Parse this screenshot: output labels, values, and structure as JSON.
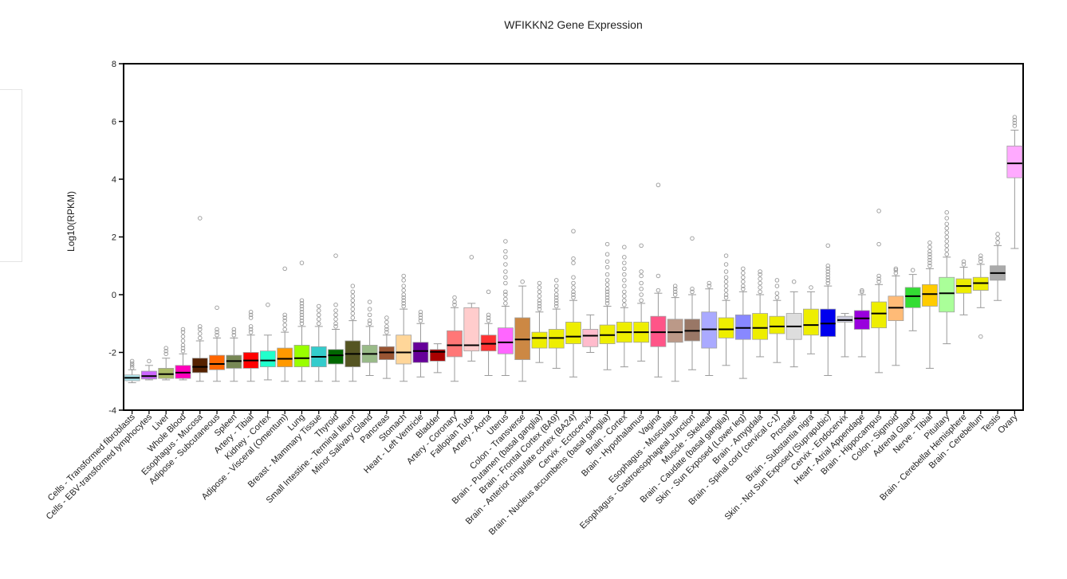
{
  "chart_data": {
    "type": "box",
    "title": "WFIKKN2 Gene Expression",
    "xlabel": "",
    "ylabel": "Log10(RPKM)",
    "ylim": [
      -4,
      8
    ],
    "yticks": [
      -4,
      -2,
      0,
      2,
      4,
      6,
      8
    ],
    "grid": false,
    "legend": "none",
    "series": [
      {
        "name": "Cells - Transformed fibroblasts",
        "color": "#b0e8f0",
        "whisker_low": -3.05,
        "q1": -2.98,
        "median": -2.88,
        "q3": -2.78,
        "whisker_high": -2.6,
        "outliers": [
          -2.45,
          -2.38,
          -2.3,
          -2.53
        ]
      },
      {
        "name": "Cells - EBV-transformed lymphocytes",
        "color": "#cc66ff",
        "whisker_low": -2.95,
        "q1": -2.92,
        "median": -2.82,
        "q3": -2.65,
        "whisker_high": -2.45,
        "outliers": [
          -2.3
        ]
      },
      {
        "name": "Liver",
        "color": "#aabb66",
        "whisker_low": -2.95,
        "q1": -2.9,
        "median": -2.75,
        "q3": -2.55,
        "whisker_high": -2.2,
        "outliers": [
          -2.05,
          -1.95,
          -1.85
        ]
      },
      {
        "name": "Whole Blood",
        "color": "#ff00bb",
        "whisker_low": -2.95,
        "q1": -2.9,
        "median": -2.7,
        "q3": -2.45,
        "whisker_high": -2.05,
        "outliers": [
          -1.95,
          -1.85,
          -1.75,
          -1.6,
          -1.45,
          -1.3,
          -1.2
        ]
      },
      {
        "name": "Esophagus - Mucosa",
        "color": "#552200",
        "whisker_low": -3.0,
        "q1": -2.7,
        "median": -2.5,
        "q3": -2.2,
        "whisker_high": -1.6,
        "outliers": [
          -1.5,
          -1.35,
          -1.2,
          -1.1,
          2.65
        ]
      },
      {
        "name": "Adipose - Subcutaneous",
        "color": "#ff6600",
        "whisker_low": -3.0,
        "q1": -2.6,
        "median": -2.4,
        "q3": -2.1,
        "whisker_high": -1.5,
        "outliers": [
          -1.4,
          -1.3,
          -1.2,
          -0.45
        ]
      },
      {
        "name": "Spleen",
        "color": "#778855",
        "whisker_low": -3.0,
        "q1": -2.55,
        "median": -2.3,
        "q3": -2.1,
        "whisker_high": -1.5,
        "outliers": [
          -1.4,
          -1.3,
          -1.2
        ]
      },
      {
        "name": "Artery - Tibial",
        "color": "#ff0000",
        "whisker_low": -3.0,
        "q1": -2.55,
        "median": -2.28,
        "q3": -2.0,
        "whisker_high": -1.4,
        "outliers": [
          -1.3,
          -1.2,
          -1.1,
          -0.8,
          -0.7,
          -0.6
        ]
      },
      {
        "name": "Kidney - Cortex",
        "color": "#22ffcc",
        "whisker_low": -2.95,
        "q1": -2.5,
        "median": -2.28,
        "q3": -1.95,
        "whisker_high": -1.4,
        "outliers": [
          -0.35
        ]
      },
      {
        "name": "Adipose - Visceral (Omentum)",
        "color": "#ff9900",
        "whisker_low": -3.0,
        "q1": -2.5,
        "median": -2.22,
        "q3": -1.85,
        "whisker_high": -1.3,
        "outliers": [
          -1.2,
          -1.05,
          -0.9,
          -0.8,
          -0.7,
          0.9
        ]
      },
      {
        "name": "Lung",
        "color": "#99ff00",
        "whisker_low": -3.0,
        "q1": -2.5,
        "median": -2.2,
        "q3": -1.75,
        "whisker_high": -1.1,
        "outliers": [
          -1.0,
          -0.9,
          -0.8,
          -0.7,
          -0.6,
          -0.5,
          -0.4,
          -0.3,
          -0.2,
          1.1
        ]
      },
      {
        "name": "Breast - Mammary Tissue",
        "color": "#33cccc",
        "whisker_low": -3.0,
        "q1": -2.5,
        "median": -2.15,
        "q3": -1.8,
        "whisker_high": -1.1,
        "outliers": [
          -1.0,
          -0.85,
          -0.7,
          -0.55,
          -0.4
        ]
      },
      {
        "name": "Thyroid",
        "color": "#006600",
        "whisker_low": -3.0,
        "q1": -2.4,
        "median": -2.1,
        "q3": -1.9,
        "whisker_high": -1.2,
        "outliers": [
          -1.1,
          -1.0,
          -0.85,
          -0.7,
          -0.55,
          -0.35,
          1.35
        ]
      },
      {
        "name": "Small Intestine - Terminal Ileum",
        "color": "#555522",
        "whisker_low": -3.0,
        "q1": -2.5,
        "median": -2.05,
        "q3": -1.6,
        "whisker_high": -0.9,
        "outliers": [
          -0.8,
          -0.65,
          -0.5,
          -0.35,
          -0.2,
          -0.05,
          0.1,
          0.3
        ]
      },
      {
        "name": "Minor Salivary Gland",
        "color": "#99bb88",
        "whisker_low": -2.8,
        "q1": -2.35,
        "median": -2.05,
        "q3": -1.75,
        "whisker_high": -1.1,
        "outliers": [
          -1.0,
          -0.9,
          -0.7,
          -0.5,
          -0.25
        ]
      },
      {
        "name": "Pancreas",
        "color": "#995533",
        "whisker_low": -2.9,
        "q1": -2.25,
        "median": -2.0,
        "q3": -1.8,
        "whisker_high": -1.4,
        "outliers": [
          -1.3,
          -1.2,
          -1.1,
          -0.95,
          -0.8
        ]
      },
      {
        "name": "Stomach",
        "color": "#ffd699",
        "whisker_low": -3.0,
        "q1": -2.4,
        "median": -2.0,
        "q3": -1.4,
        "whisker_high": -0.5,
        "outliers": [
          -0.4,
          -0.3,
          -0.2,
          -0.1,
          0.0,
          0.15,
          0.3,
          0.5,
          0.65
        ]
      },
      {
        "name": "Heart - Left Ventricle",
        "color": "#660099",
        "whisker_low": -2.85,
        "q1": -2.35,
        "median": -1.95,
        "q3": -1.65,
        "whisker_high": -1.0,
        "outliers": [
          -0.9,
          -0.8,
          -0.7,
          -0.6
        ]
      },
      {
        "name": "Bladder",
        "color": "#aa0000",
        "whisker_low": -2.7,
        "q1": -2.3,
        "median": -1.98,
        "q3": -1.9,
        "whisker_high": -1.7,
        "outliers": []
      },
      {
        "name": "Artery - Coronary",
        "color": "#ff7777",
        "whisker_low": -3.0,
        "q1": -2.15,
        "median": -1.75,
        "q3": -1.25,
        "whisker_high": -0.45,
        "outliers": [
          -0.35,
          -0.25,
          -0.1
        ]
      },
      {
        "name": "Fallopian Tube",
        "color": "#ffcccc",
        "whisker_low": -2.3,
        "q1": -1.95,
        "median": -1.75,
        "q3": -0.45,
        "whisker_high": -0.3,
        "outliers": [
          1.3
        ]
      },
      {
        "name": "Artery - Aorta",
        "color": "#ff3333",
        "whisker_low": -2.8,
        "q1": -1.95,
        "median": -1.7,
        "q3": -1.4,
        "whisker_high": -1.0,
        "outliers": [
          -0.9,
          -0.8,
          -0.7,
          0.1
        ]
      },
      {
        "name": "Uterus",
        "color": "#ff66ff",
        "whisker_low": -2.8,
        "q1": -2.05,
        "median": -1.65,
        "q3": -1.15,
        "whisker_high": -0.4,
        "outliers": [
          -0.3,
          -0.15,
          0.0,
          0.1,
          0.4,
          0.6,
          0.8,
          1.05,
          1.3,
          1.5,
          1.85
        ]
      },
      {
        "name": "Colon - Transverse",
        "color": "#cc8844",
        "whisker_low": -3.0,
        "q1": -2.25,
        "median": -1.55,
        "q3": -0.8,
        "whisker_high": 0.3,
        "outliers": [
          0.45
        ]
      },
      {
        "name": "Brain - Putamen (basal ganglia)",
        "color": "#eeee00",
        "whisker_low": -2.35,
        "q1": -1.85,
        "median": -1.5,
        "q3": -1.3,
        "whisker_high": -0.6,
        "outliers": [
          -0.5,
          -0.4,
          -0.3,
          -0.2,
          -0.05,
          0.1,
          0.25,
          0.4
        ]
      },
      {
        "name": "Brain - Frontal Cortex (BA9)",
        "color": "#eeee00",
        "whisker_low": -2.55,
        "q1": -1.85,
        "median": -1.5,
        "q3": -1.2,
        "whisker_high": -0.5,
        "outliers": [
          -0.4,
          -0.3,
          -0.2,
          -0.1,
          0.0,
          0.15,
          0.3,
          0.5
        ]
      },
      {
        "name": "Brain - Anterior cingulate cortex (BA24)",
        "color": "#eeee00",
        "whisker_low": -2.85,
        "q1": -1.7,
        "median": -1.45,
        "q3": -0.95,
        "whisker_high": -0.2,
        "outliers": [
          -0.1,
          0.0,
          0.1,
          0.25,
          0.4,
          0.6,
          1.1,
          1.25,
          2.2
        ]
      },
      {
        "name": "Cervix - Ectocervix",
        "color": "#ffbbcc",
        "whisker_low": -2.0,
        "q1": -1.8,
        "median": -1.42,
        "q3": -1.2,
        "whisker_high": -0.7,
        "outliers": []
      },
      {
        "name": "Brain - Nucleus accumbens (basal ganglia)",
        "color": "#eeee00",
        "whisker_low": -2.6,
        "q1": -1.7,
        "median": -1.4,
        "q3": -1.05,
        "whisker_high": -0.4,
        "outliers": [
          -0.3,
          -0.2,
          -0.1,
          0.0,
          0.1,
          0.2,
          0.35,
          0.5,
          0.7,
          0.95,
          1.15,
          1.4,
          1.75
        ]
      },
      {
        "name": "Brain - Cortex",
        "color": "#eeee00",
        "whisker_low": -2.5,
        "q1": -1.65,
        "median": -1.3,
        "q3": -0.95,
        "whisker_high": -0.45,
        "outliers": [
          -0.35,
          -0.2,
          -0.05,
          0.1,
          0.3,
          0.5,
          0.7,
          0.9,
          1.1,
          1.3,
          1.65
        ]
      },
      {
        "name": "Brain - Hypothalamus",
        "color": "#eeee00",
        "whisker_low": -2.3,
        "q1": -1.65,
        "median": -1.3,
        "q3": -0.95,
        "whisker_high": -0.3,
        "outliers": [
          -0.2,
          0.0,
          0.2,
          0.4,
          0.65,
          0.8,
          1.7
        ]
      },
      {
        "name": "Vagina",
        "color": "#ff5588",
        "whisker_low": -2.85,
        "q1": -1.8,
        "median": -1.3,
        "q3": -0.75,
        "whisker_high": 0.05,
        "outliers": [
          0.15,
          0.65,
          3.8
        ]
      },
      {
        "name": "Esophagus - Muscularis",
        "color": "#bb9988",
        "whisker_low": -3.0,
        "q1": -1.65,
        "median": -1.3,
        "q3": -0.85,
        "whisker_high": -0.1,
        "outliers": [
          0.0,
          0.1,
          0.2,
          0.3
        ]
      },
      {
        "name": "Esophagus - Gastroesophageal Junction",
        "color": "#997766",
        "whisker_low": -2.6,
        "q1": -1.6,
        "median": -1.25,
        "q3": -0.85,
        "whisker_high": 0.0,
        "outliers": [
          0.1,
          0.2,
          1.95
        ]
      },
      {
        "name": "Muscle - Skeletal",
        "color": "#aaaaff",
        "whisker_low": -2.8,
        "q1": -1.85,
        "median": -1.2,
        "q3": -0.6,
        "whisker_high": 0.2,
        "outliers": [
          0.3,
          0.4
        ]
      },
      {
        "name": "Brain - Caudate (basal ganglia)",
        "color": "#eeee00",
        "whisker_low": -2.45,
        "q1": -1.5,
        "median": -1.2,
        "q3": -0.8,
        "whisker_high": -0.2,
        "outliers": [
          -0.1,
          0.0,
          0.15,
          0.3,
          0.45,
          0.6,
          0.8,
          1.05,
          1.35
        ]
      },
      {
        "name": "Skin - Sun Exposed (Lower leg)",
        "color": "#8888ff",
        "whisker_low": -2.9,
        "q1": -1.55,
        "median": -1.15,
        "q3": -0.7,
        "whisker_high": 0.1,
        "outliers": [
          0.2,
          0.3,
          0.45,
          0.6,
          0.75,
          0.9
        ]
      },
      {
        "name": "Brain - Amygdala",
        "color": "#eeee00",
        "whisker_low": -2.15,
        "q1": -1.55,
        "median": -1.15,
        "q3": -0.65,
        "whisker_high": 0.0,
        "outliers": [
          0.1,
          0.25,
          0.4,
          0.55,
          0.7,
          0.8
        ]
      },
      {
        "name": "Brain - Spinal cord (cervical c-1)",
        "color": "#eeee00",
        "whisker_low": -2.35,
        "q1": -1.35,
        "median": -1.1,
        "q3": -0.75,
        "whisker_high": -0.2,
        "outliers": [
          -0.1,
          0.05,
          0.3,
          0.5
        ]
      },
      {
        "name": "Prostate",
        "color": "#dddddd",
        "whisker_low": -2.5,
        "q1": -1.55,
        "median": -1.1,
        "q3": -0.65,
        "whisker_high": 0.1,
        "outliers": [
          0.45
        ]
      },
      {
        "name": "Brain - Substantia nigra",
        "color": "#eeee00",
        "whisker_low": -2.05,
        "q1": -1.4,
        "median": -1.05,
        "q3": -0.5,
        "whisker_high": 0.1,
        "outliers": [
          0.25
        ]
      },
      {
        "name": "Skin - Not Sun Exposed (Suprapubic)",
        "color": "#0000ee",
        "whisker_low": -2.8,
        "q1": -1.45,
        "median": -1.0,
        "q3": -0.5,
        "whisker_high": 0.3,
        "outliers": [
          0.4,
          0.5,
          0.6,
          0.7,
          0.8,
          0.9,
          1.0,
          1.7
        ]
      },
      {
        "name": "Cervix - Endocervix",
        "color": "#ccccdd",
        "whisker_low": -2.15,
        "q1": -0.95,
        "median": -0.88,
        "q3": -0.75,
        "whisker_high": -0.65,
        "outliers": []
      },
      {
        "name": "Heart - Atrial Appendage",
        "color": "#9900dd",
        "whisker_low": -2.15,
        "q1": -1.2,
        "median": -0.82,
        "q3": -0.55,
        "whisker_high": 0.0,
        "outliers": [
          0.1,
          0.15
        ]
      },
      {
        "name": "Brain - Hippocampus",
        "color": "#eeee00",
        "whisker_low": -2.7,
        "q1": -1.15,
        "median": -0.65,
        "q3": -0.25,
        "whisker_high": 0.35,
        "outliers": [
          0.45,
          0.55,
          0.65,
          1.75,
          2.9
        ]
      },
      {
        "name": "Colon - Sigmoid",
        "color": "#ffbb77",
        "whisker_low": -2.45,
        "q1": -0.9,
        "median": -0.45,
        "q3": -0.05,
        "whisker_high": 0.65,
        "outliers": [
          0.75,
          0.85,
          0.9
        ]
      },
      {
        "name": "Adrenal Gland",
        "color": "#33dd33",
        "whisker_low": -1.25,
        "q1": -0.45,
        "median": -0.05,
        "q3": 0.25,
        "whisker_high": 0.7,
        "outliers": [
          0.85
        ]
      },
      {
        "name": "Nerve - Tibial",
        "color": "#ffcc00",
        "whisker_low": -2.55,
        "q1": -0.4,
        "median": 0.02,
        "q3": 0.35,
        "whisker_high": 0.9,
        "outliers": [
          1.0,
          1.1,
          1.2,
          1.3,
          1.4,
          1.5,
          1.65,
          1.8
        ]
      },
      {
        "name": "Pituitary",
        "color": "#aaff99",
        "whisker_low": -1.7,
        "q1": -0.6,
        "median": 0.05,
        "q3": 0.6,
        "whisker_high": 1.3,
        "outliers": [
          1.4,
          1.55,
          1.7,
          1.85,
          2.0,
          2.15,
          2.3,
          2.45,
          2.65,
          2.85
        ]
      },
      {
        "name": "Brain - Cerebellar Hemisphere",
        "color": "#eeee00",
        "whisker_low": -0.7,
        "q1": 0.05,
        "median": 0.3,
        "q3": 0.55,
        "whisker_high": 0.95,
        "outliers": [
          1.05,
          1.15
        ]
      },
      {
        "name": "Brain - Cerebellum",
        "color": "#eeee00",
        "whisker_low": -0.45,
        "q1": 0.15,
        "median": 0.4,
        "q3": 0.6,
        "whisker_high": 1.05,
        "outliers": [
          1.15,
          1.25,
          1.35,
          -1.45
        ]
      },
      {
        "name": "Testis",
        "color": "#aaaaaa",
        "whisker_low": -0.2,
        "q1": 0.5,
        "median": 0.75,
        "q3": 1.0,
        "whisker_high": 1.7,
        "outliers": [
          1.8,
          1.95,
          2.1
        ]
      },
      {
        "name": "Ovary",
        "color": "#ffaaff",
        "whisker_low": 1.6,
        "q1": 4.05,
        "median": 4.55,
        "q3": 5.15,
        "whisker_high": 5.7,
        "outliers": [
          5.85,
          5.95,
          6.05,
          6.15
        ]
      }
    ]
  }
}
